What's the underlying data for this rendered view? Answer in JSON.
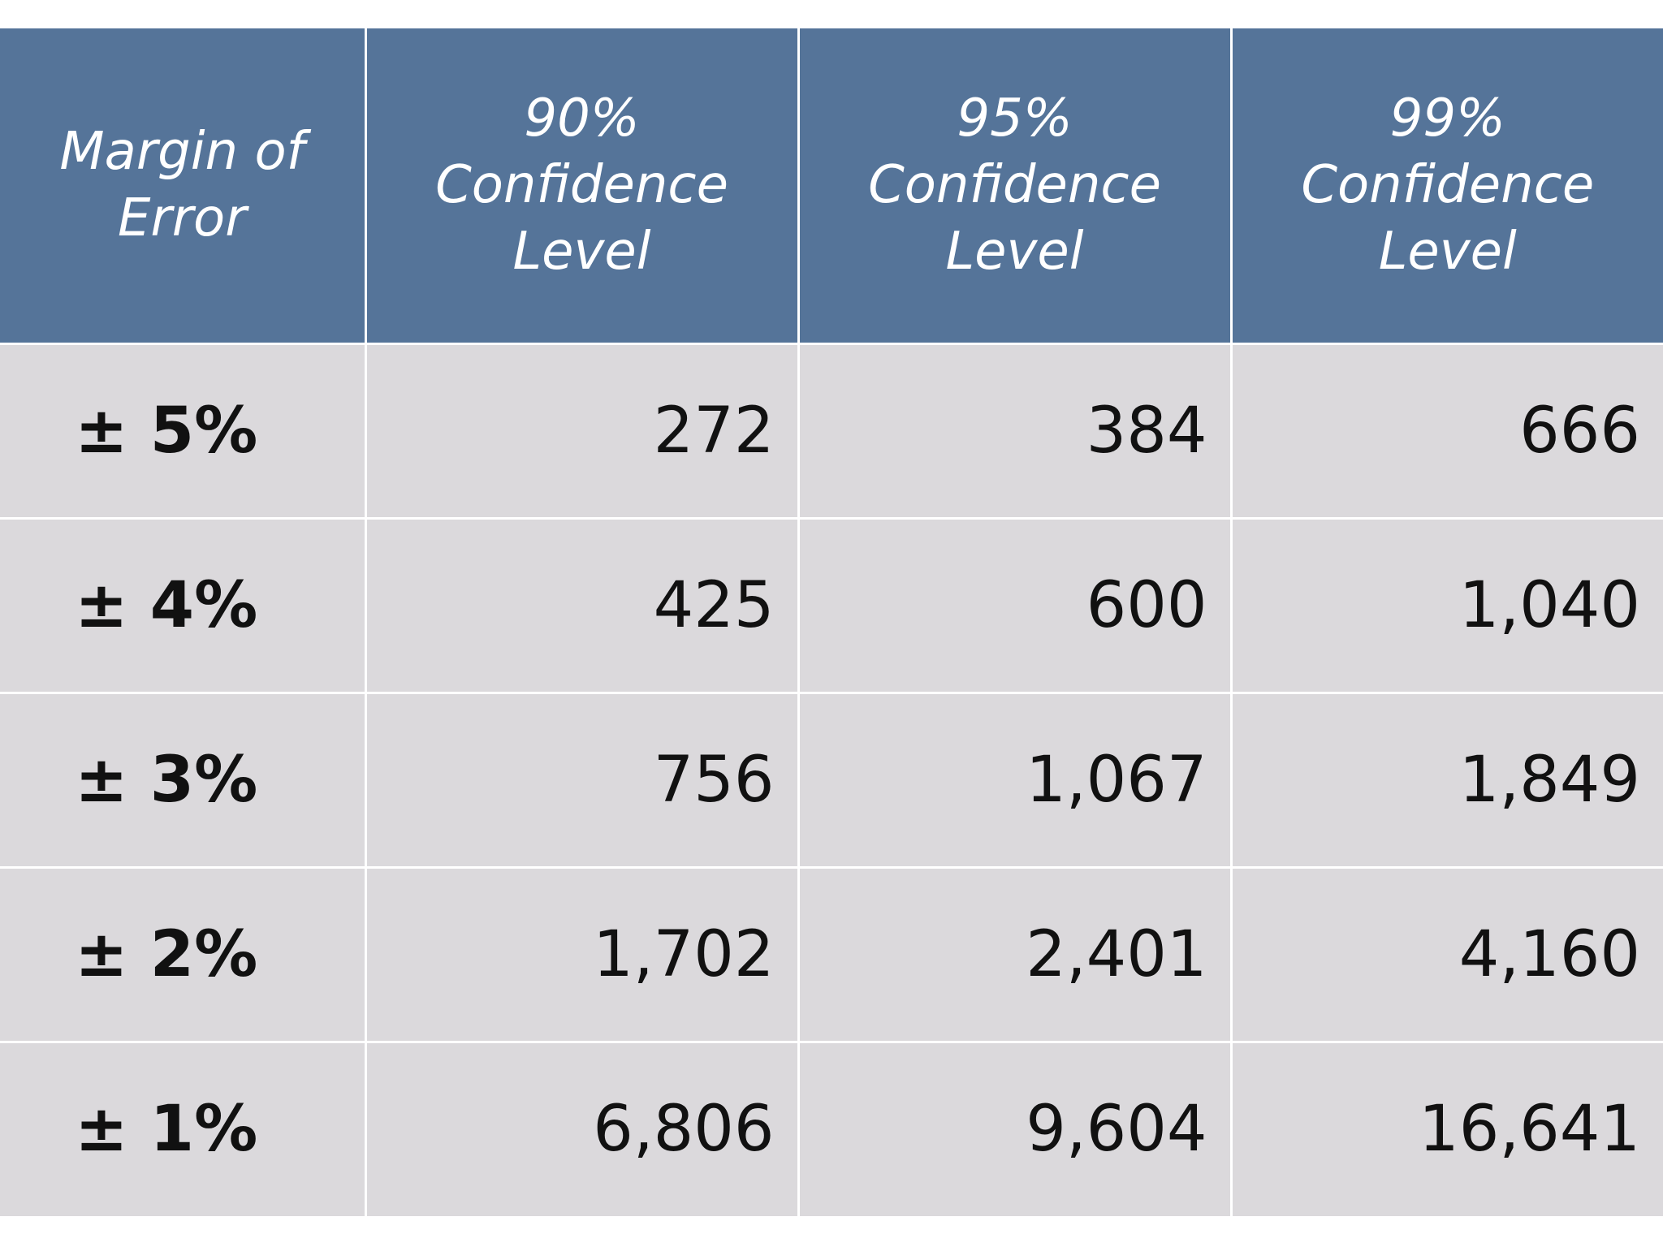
{
  "header": {
    "margin_of_error": [
      "Margin of",
      "Error"
    ],
    "conf90": [
      "90%",
      "Confidence",
      "Level"
    ],
    "conf95": [
      "95%",
      "Confidence",
      "Level"
    ],
    "conf99": [
      "99%",
      "Confidence",
      "Level"
    ]
  },
  "rows": [
    {
      "margin": "± 5%",
      "c90": "272",
      "c95": "384",
      "c99": "666"
    },
    {
      "margin": "± 4%",
      "c90": "425",
      "c95": "600",
      "c99": "1,040"
    },
    {
      "margin": "± 3%",
      "c90": "756",
      "c95": "1,067",
      "c99": "1,849"
    },
    {
      "margin": "± 2%",
      "c90": "1,702",
      "c95": "2,401",
      "c99": "4,160"
    },
    {
      "margin": "± 1%",
      "c90": "6,806",
      "c95": "9,604",
      "c99": "16,641"
    }
  ],
  "colors": {
    "header_bg": "#557499",
    "body_bg": "#dbd9dc",
    "grid_line": "#ffffff"
  }
}
